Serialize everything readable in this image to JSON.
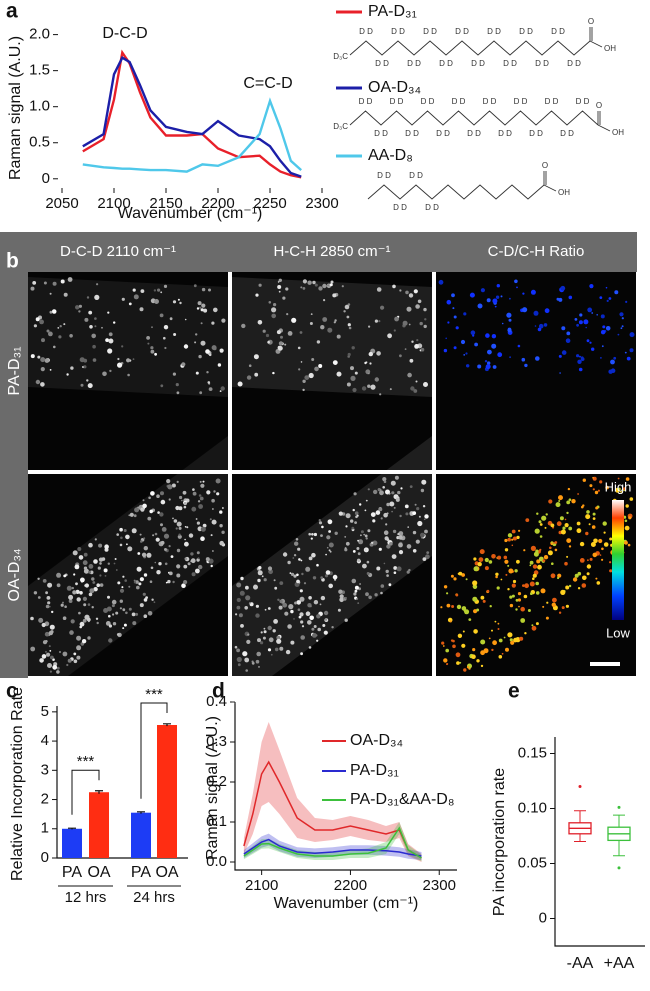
{
  "panels": [
    "a",
    "b",
    "c",
    "d",
    "e"
  ],
  "chart_data": [
    {
      "type": "line",
      "x_label": "Wavenumber (cm⁻¹)",
      "y_label": "Raman signal (A.U.)",
      "annotations": [
        "D-C-D",
        "C=C-D"
      ],
      "x": [
        2070,
        2090,
        2100,
        2108,
        2115,
        2125,
        2135,
        2150,
        2170,
        2185,
        2200,
        2220,
        2240,
        2250,
        2260,
        2270,
        2280
      ],
      "series": [
        {
          "name": "PA-D₃₁",
          "color": "#e8202a",
          "values": [
            0.38,
            0.55,
            1.1,
            1.75,
            1.6,
            1.2,
            0.85,
            0.6,
            0.6,
            0.62,
            0.42,
            0.3,
            0.32,
            0.2,
            0.1,
            0.05,
            0.02
          ]
        },
        {
          "name": "OA-D₃₄",
          "color": "#1c1fa8",
          "values": [
            0.45,
            0.62,
            1.45,
            1.68,
            1.62,
            1.3,
            0.95,
            0.72,
            0.65,
            0.62,
            0.8,
            0.6,
            0.55,
            0.45,
            0.25,
            0.08,
            0.03
          ]
        },
        {
          "name": "AA-D₈",
          "color": "#4fc8ea",
          "values": [
            0.2,
            0.16,
            0.15,
            0.14,
            0.14,
            0.13,
            0.12,
            0.12,
            0.1,
            0.2,
            0.18,
            0.3,
            0.62,
            1.08,
            0.7,
            0.25,
            0.12
          ]
        }
      ],
      "xlim": [
        2050,
        2300
      ],
      "xticks": [
        2050,
        2100,
        2150,
        2200,
        2250,
        2300
      ],
      "ylim": [
        -0.1,
        2.05
      ],
      "yticks": [
        0,
        0.5,
        {
          "value": 1,
          "label": "1.0"
        },
        1.5,
        {
          "value": 2,
          "label": "2.0"
        }
      ]
    },
    {
      "type": "bar",
      "y_label": "Relative Incorporation Rate",
      "categories": [
        "PA",
        "OA",
        "PA",
        "OA"
      ],
      "groups": [
        "12 hrs",
        "24 hrs"
      ],
      "values": [
        1.0,
        2.25,
        1.55,
        4.55
      ],
      "errors": [
        0.02,
        0.05,
        0.03,
        0.04
      ],
      "colors": [
        "#1d3cf5",
        "#ff2d12",
        "#1d3cf5",
        "#ff2d12"
      ],
      "significance": [
        "***",
        "***"
      ],
      "ylim": [
        0,
        5.2
      ],
      "yticks": [
        0,
        1,
        2,
        3,
        4,
        5
      ]
    },
    {
      "type": "band",
      "x_label": "Wavenumber (cm⁻¹)",
      "y_label": "Raman signal (A.U.)",
      "x": [
        2080,
        2090,
        2100,
        2108,
        2120,
        2140,
        2160,
        2180,
        2200,
        2220,
        2240,
        2255,
        2265,
        2280
      ],
      "series": [
        {
          "name": "OA-D₃₄",
          "color": "#e0282a",
          "values": [
            0.04,
            0.12,
            0.22,
            0.25,
            0.2,
            0.11,
            0.08,
            0.08,
            0.09,
            0.08,
            0.07,
            0.08,
            0.03,
            0.01
          ],
          "errors": [
            0.02,
            0.05,
            0.08,
            0.1,
            0.08,
            0.05,
            0.03,
            0.025,
            0.025,
            0.025,
            0.02,
            0.02,
            0.015,
            0.01
          ]
        },
        {
          "name": "PA-D₃₁",
          "color": "#2a2ad0",
          "values": [
            0.02,
            0.035,
            0.05,
            0.056,
            0.04,
            0.025,
            0.022,
            0.025,
            0.03,
            0.03,
            0.028,
            0.025,
            0.02,
            0.015
          ],
          "errors": [
            0.01,
            0.012,
            0.014,
            0.015,
            0.013,
            0.012,
            0.012,
            0.012,
            0.012,
            0.012,
            0.012,
            0.012,
            0.012,
            0.01
          ]
        },
        {
          "name": "PA-D₃₁&AA-D₈",
          "color": "#3cc03c",
          "values": [
            0.015,
            0.03,
            0.045,
            0.046,
            0.035,
            0.02,
            0.015,
            0.015,
            0.02,
            0.022,
            0.035,
            0.085,
            0.03,
            0.01
          ],
          "errors": [
            0.008,
            0.01,
            0.012,
            0.012,
            0.01,
            0.01,
            0.01,
            0.01,
            0.01,
            0.012,
            0.015,
            0.015,
            0.012,
            0.008
          ]
        }
      ],
      "xlim": [
        2070,
        2320
      ],
      "xticks": [
        2100,
        2200,
        2300
      ],
      "ylim": [
        -0.02,
        0.4
      ],
      "yticks": [
        {
          "value": 0,
          "label": "0.0"
        },
        0.1,
        0.2,
        0.3,
        0.4
      ]
    },
    {
      "type": "box",
      "y_label": "PA incorporation rate",
      "categories": [
        "-AA",
        "+AA"
      ],
      "boxes": [
        {
          "color": "#e0202a",
          "whisker_low": 0.07,
          "q1": 0.077,
          "median": 0.082,
          "q3": 0.087,
          "whisker_high": 0.098,
          "outliers": [
            0.12
          ]
        },
        {
          "color": "#3cc03c",
          "whisker_low": 0.057,
          "q1": 0.071,
          "median": 0.077,
          "q3": 0.083,
          "whisker_high": 0.094,
          "outliers": [
            0.101,
            0.046
          ]
        }
      ],
      "ylim": [
        -0.025,
        0.165
      ],
      "yticks": [
        0,
        0.05,
        {
          "value": 0.1,
          "label": "0.10"
        },
        0.15
      ]
    }
  ],
  "structures": [
    {
      "terminal": "D₃C",
      "d_labels": [
        "D",
        "D",
        "D",
        "D",
        "D",
        "D",
        "D",
        "D",
        "D",
        "D",
        "D",
        "D",
        "D",
        "D",
        "D",
        "D",
        "D",
        "D",
        "D",
        "D",
        "D",
        "D",
        "D",
        "D",
        "D",
        "D",
        "D",
        "D"
      ],
      "acid": [
        "O",
        "OH"
      ]
    },
    {
      "terminal": "D₃C",
      "d_labels": [
        "D",
        "D",
        "D",
        "D",
        "D",
        "D",
        "D",
        "D",
        "D",
        "D",
        "D",
        "D",
        "D",
        "D",
        "D",
        "D",
        "D",
        "D",
        "D",
        "D",
        "D",
        "D",
        "D",
        "D",
        "D",
        "D",
        "D",
        "D",
        "D",
        "D"
      ],
      "acid": [
        "O",
        "OH"
      ]
    },
    {
      "d_labels": [
        "D",
        "D",
        "D",
        "D",
        "D",
        "D",
        "D",
        "D"
      ],
      "acid": [
        "O",
        "OH"
      ]
    }
  ],
  "figure_b": {
    "column_titles": [
      "D-C-D 2110 cm⁻¹",
      "H-C-H 2850 cm⁻¹",
      "C-D/C-H Ratio"
    ],
    "row_titles": [
      "PA-D₃₁",
      "OA-D₃₄"
    ],
    "colorbar": [
      "High",
      "Low"
    ]
  }
}
